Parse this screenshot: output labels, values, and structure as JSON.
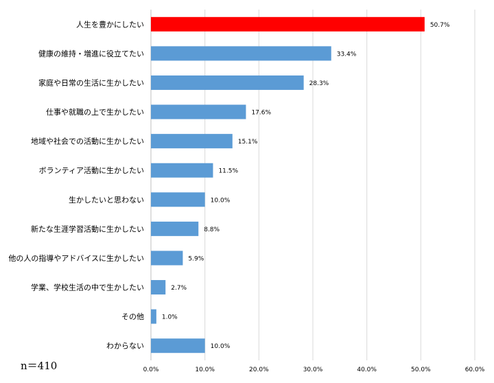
{
  "chart_data": {
    "type": "bar",
    "orientation": "horizontal",
    "categories": [
      "人生を豊かにしたい",
      "健康の維持・増進に役立てたい",
      "家庭や日常の生活に生かしたい",
      "仕事や就職の上で生かしたい",
      "地域や社会での活動に生かしたい",
      "ボランティア活動に生かしたい",
      "生かしたいと思わない",
      "新たな生涯学習活動に生かしたい",
      "他の人の指導やアドバイスに生かしたい",
      "学業、学校生活の中で生かしたい",
      "その他",
      "わからない"
    ],
    "values": [
      50.7,
      33.4,
      28.3,
      17.6,
      15.1,
      11.5,
      10.0,
      8.8,
      5.9,
      2.7,
      1.0,
      10.0
    ],
    "value_labels": [
      "50.7%",
      "33.4%",
      "28.3%",
      "17.6%",
      "15.1%",
      "11.5%",
      "10.0%",
      "8.8%",
      "5.9%",
      "2.7%",
      "1.0%",
      "10.0%"
    ],
    "xlim": [
      0,
      60
    ],
    "xticks": [
      0,
      10,
      20,
      30,
      40,
      50,
      60
    ],
    "xtick_labels": [
      "0.0%",
      "10.0%",
      "20.0%",
      "30.0%",
      "40.0%",
      "50.0%",
      "60.0%"
    ],
    "grid": true,
    "highlight_index": 0,
    "colors": {
      "bar": "#5b9bd5",
      "highlight": "#ff0000",
      "grid": "#d9d9d9"
    },
    "title": "",
    "xlabel": "",
    "ylabel": ""
  },
  "note": "n＝410"
}
